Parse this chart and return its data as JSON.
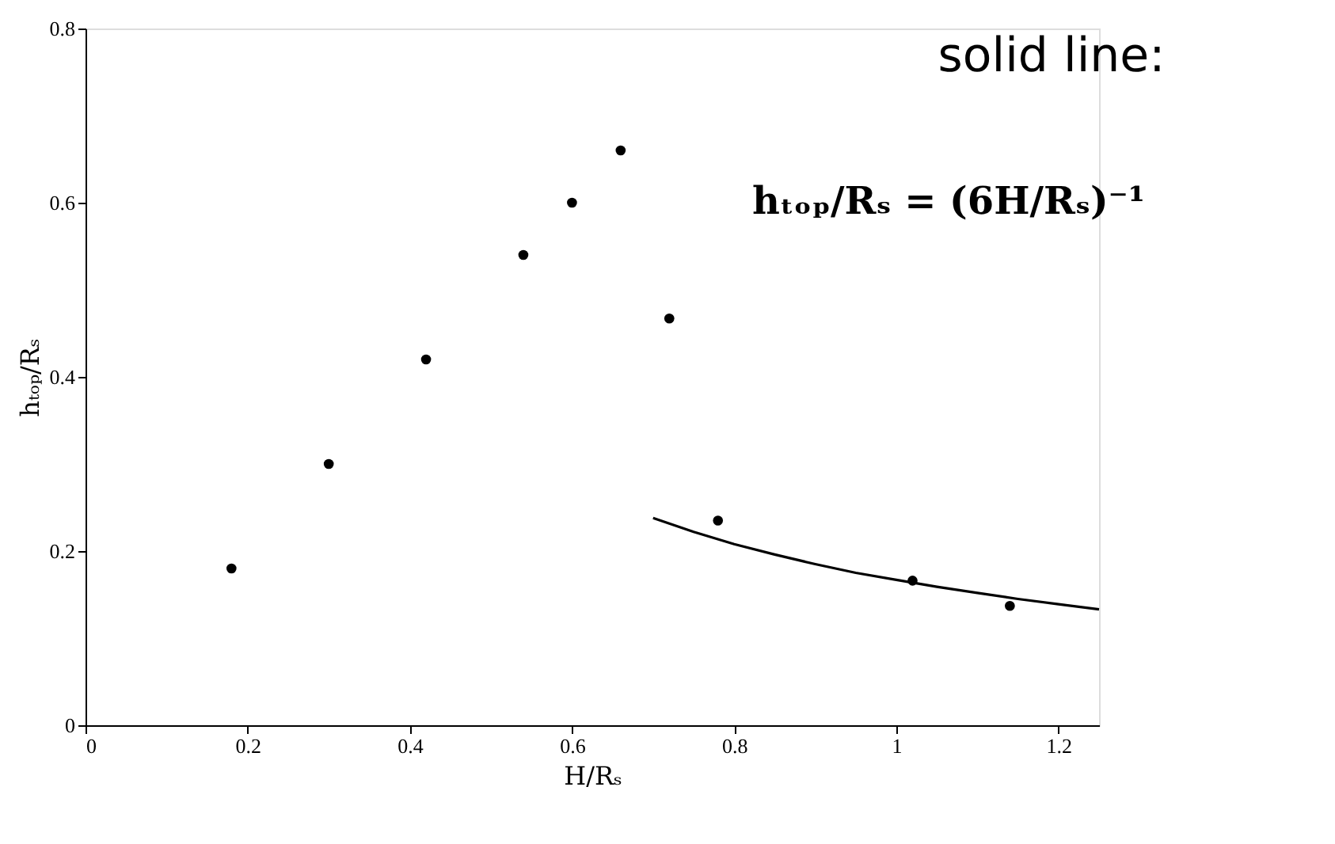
{
  "chart_data": {
    "type": "scatter",
    "xlabel": "H/Rₛ",
    "ylabel": "hₜₒₚ/Rₛ",
    "xlim": [
      0,
      1.25
    ],
    "ylim": [
      0,
      0.8
    ],
    "xticks": [
      0,
      0.2,
      0.4,
      0.6,
      0.8,
      1,
      1.2
    ],
    "yticks": [
      0,
      0.2,
      0.4,
      0.6,
      0.8
    ],
    "grid": false,
    "marker": "circle",
    "series": [
      {
        "color": "#000000",
        "x": [
          0.18,
          0.3,
          0.42,
          0.54,
          0.6,
          0.66,
          0.72,
          0.78,
          1.02,
          1.14
        ],
        "values": [
          0.18,
          0.3,
          0.42,
          0.54,
          0.6,
          0.66,
          0.467,
          0.235,
          0.166,
          0.137
        ]
      },
      {
        "type": "line",
        "color": "#000000",
        "line_style": "solid",
        "marker": "none",
        "x": [
          0.7,
          0.75,
          0.8,
          0.85,
          0.9,
          0.95,
          1.0,
          1.05,
          1.1,
          1.15,
          1.2,
          1.25
        ],
        "values": [
          0.238,
          0.222,
          0.208,
          0.196,
          0.185,
          0.175,
          0.167,
          0.159,
          0.152,
          0.145,
          0.139,
          0.133
        ]
      }
    ],
    "annotations": [
      "solid line:",
      "hₜₒₚ/Rₛ = (6H/Rₛ)⁻¹"
    ]
  }
}
